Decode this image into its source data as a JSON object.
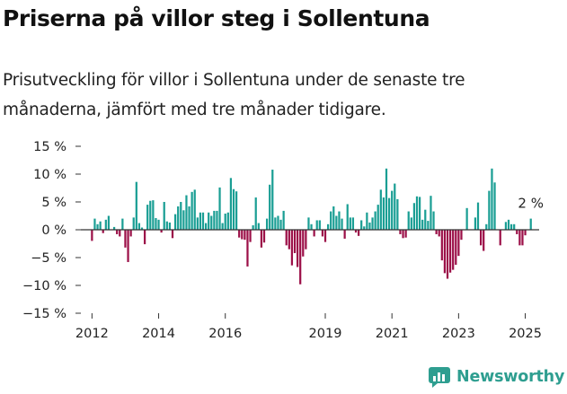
{
  "title": "Priserna på villor steg i Sollentuna",
  "subtitle": "Prisutveckling för villor i Sollentuna under de senaste tre månaderna, jämfört med tre månader tidigare.",
  "brand": {
    "name": "Newsworthy",
    "icon": "newsworthy-logo-icon"
  },
  "colors": {
    "positive": "#1a9e94",
    "negative": "#9c1048",
    "axis": "#333333",
    "text": "#222222"
  },
  "chart_data": {
    "type": "bar",
    "x_start": "2011-09",
    "x_end": "2025-06",
    "ylim": [
      -15,
      15
    ],
    "y_ticks": [
      15,
      10,
      5,
      0,
      -5,
      -10,
      -15
    ],
    "y_tick_labels": [
      "15 %",
      "10 %",
      "5 %",
      "0 %",
      "−5 %",
      "−10 %",
      "−15 %"
    ],
    "x_ticks": [
      "2012",
      "2014",
      "2016",
      "2019",
      "2021",
      "2023",
      "2025"
    ],
    "x_tick_dates": [
      "2012-01",
      "2014-01",
      "2016-01",
      "2019-01",
      "2021-01",
      "2023-01",
      "2025-01"
    ],
    "annotation": {
      "text": "2 %",
      "date": "2025-03"
    },
    "grid": false,
    "legend": "none",
    "series": [
      {
        "values": [
          {
            "date": "2012-01",
            "value": -2.0
          },
          {
            "date": "2012-02",
            "value": 2.0
          },
          {
            "date": "2012-03",
            "value": 1.0
          },
          {
            "date": "2012-04",
            "value": 1.5
          },
          {
            "date": "2012-05",
            "value": -0.6
          },
          {
            "date": "2012-06",
            "value": 1.8
          },
          {
            "date": "2012-07",
            "value": 2.5
          },
          {
            "date": "2012-09",
            "value": 0.5
          },
          {
            "date": "2012-10",
            "value": -0.8
          },
          {
            "date": "2012-11",
            "value": -1.2
          },
          {
            "date": "2012-12",
            "value": 2.0
          },
          {
            "date": "2013-01",
            "value": -3.2
          },
          {
            "date": "2013-02",
            "value": -5.8
          },
          {
            "date": "2013-03",
            "value": -1.2
          },
          {
            "date": "2013-04",
            "value": 2.2
          },
          {
            "date": "2013-05",
            "value": 8.6
          },
          {
            "date": "2013-06",
            "value": 1.2
          },
          {
            "date": "2013-07",
            "value": 0.4
          },
          {
            "date": "2013-08",
            "value": -2.6
          },
          {
            "date": "2013-09",
            "value": 4.5
          },
          {
            "date": "2013-10",
            "value": 5.2
          },
          {
            "date": "2013-11",
            "value": 5.3
          },
          {
            "date": "2013-12",
            "value": 2.1
          },
          {
            "date": "2014-01",
            "value": 1.8
          },
          {
            "date": "2014-02",
            "value": -0.5
          },
          {
            "date": "2014-03",
            "value": 5.0
          },
          {
            "date": "2014-04",
            "value": 1.5
          },
          {
            "date": "2014-05",
            "value": 1.3
          },
          {
            "date": "2014-06",
            "value": -1.5
          },
          {
            "date": "2014-07",
            "value": 2.8
          },
          {
            "date": "2014-08",
            "value": 4.2
          },
          {
            "date": "2014-09",
            "value": 5.0
          },
          {
            "date": "2014-10",
            "value": 3.5
          },
          {
            "date": "2014-11",
            "value": 6.2
          },
          {
            "date": "2014-12",
            "value": 4.2
          },
          {
            "date": "2015-01",
            "value": 6.8
          },
          {
            "date": "2015-02",
            "value": 7.2
          },
          {
            "date": "2015-03",
            "value": 2.2
          },
          {
            "date": "2015-04",
            "value": 3.1
          },
          {
            "date": "2015-05",
            "value": 3.1
          },
          {
            "date": "2015-06",
            "value": 1.2
          },
          {
            "date": "2015-07",
            "value": 3.1
          },
          {
            "date": "2015-08",
            "value": 2.5
          },
          {
            "date": "2015-09",
            "value": 3.4
          },
          {
            "date": "2015-10",
            "value": 3.4
          },
          {
            "date": "2015-11",
            "value": 7.6
          },
          {
            "date": "2015-12",
            "value": 1.2
          },
          {
            "date": "2016-01",
            "value": 2.9
          },
          {
            "date": "2016-02",
            "value": 3.1
          },
          {
            "date": "2016-03",
            "value": 9.3
          },
          {
            "date": "2016-04",
            "value": 7.3
          },
          {
            "date": "2016-05",
            "value": 6.9
          },
          {
            "date": "2016-06",
            "value": -1.4
          },
          {
            "date": "2016-07",
            "value": -1.7
          },
          {
            "date": "2016-08",
            "value": -1.8
          },
          {
            "date": "2016-09",
            "value": -6.6
          },
          {
            "date": "2016-10",
            "value": -2.2
          },
          {
            "date": "2016-11",
            "value": 0.8
          },
          {
            "date": "2016-12",
            "value": 5.8
          },
          {
            "date": "2017-01",
            "value": 1.2
          },
          {
            "date": "2017-02",
            "value": -3.2
          },
          {
            "date": "2017-03",
            "value": -2.3
          },
          {
            "date": "2017-04",
            "value": 2.0
          },
          {
            "date": "2017-05",
            "value": 8.1
          },
          {
            "date": "2017-06",
            "value": 10.8
          },
          {
            "date": "2017-07",
            "value": 2.2
          },
          {
            "date": "2017-08",
            "value": 2.5
          },
          {
            "date": "2017-09",
            "value": 1.8
          },
          {
            "date": "2017-10",
            "value": 3.4
          },
          {
            "date": "2017-11",
            "value": -2.8
          },
          {
            "date": "2017-12",
            "value": -3.5
          },
          {
            "date": "2018-01",
            "value": -6.4
          },
          {
            "date": "2018-02",
            "value": -4.2
          },
          {
            "date": "2018-03",
            "value": -6.7
          },
          {
            "date": "2018-04",
            "value": -9.8
          },
          {
            "date": "2018-05",
            "value": -4.8
          },
          {
            "date": "2018-06",
            "value": -3.5
          },
          {
            "date": "2018-07",
            "value": 2.2
          },
          {
            "date": "2018-08",
            "value": 1.0
          },
          {
            "date": "2018-09",
            "value": -1.2
          },
          {
            "date": "2018-10",
            "value": 1.7
          },
          {
            "date": "2018-11",
            "value": 1.7
          },
          {
            "date": "2018-12",
            "value": -1.2
          },
          {
            "date": "2019-01",
            "value": -2.2
          },
          {
            "date": "2019-02",
            "value": 1.0
          },
          {
            "date": "2019-03",
            "value": 3.3
          },
          {
            "date": "2019-04",
            "value": 4.2
          },
          {
            "date": "2019-05",
            "value": 2.5
          },
          {
            "date": "2019-06",
            "value": 3.3
          },
          {
            "date": "2019-07",
            "value": 2.0
          },
          {
            "date": "2019-08",
            "value": -1.6
          },
          {
            "date": "2019-09",
            "value": 4.6
          },
          {
            "date": "2019-10",
            "value": 2.2
          },
          {
            "date": "2019-11",
            "value": 2.2
          },
          {
            "date": "2019-12",
            "value": -0.5
          },
          {
            "date": "2020-01",
            "value": -1.1
          },
          {
            "date": "2020-02",
            "value": 1.7
          },
          {
            "date": "2020-03",
            "value": 0.6
          },
          {
            "date": "2020-04",
            "value": 3.1
          },
          {
            "date": "2020-05",
            "value": 1.3
          },
          {
            "date": "2020-06",
            "value": 2.2
          },
          {
            "date": "2020-07",
            "value": 3.3
          },
          {
            "date": "2020-08",
            "value": 4.5
          },
          {
            "date": "2020-09",
            "value": 7.2
          },
          {
            "date": "2020-10",
            "value": 5.8
          },
          {
            "date": "2020-11",
            "value": 11.0
          },
          {
            "date": "2020-12",
            "value": 5.7
          },
          {
            "date": "2021-01",
            "value": 7.0
          },
          {
            "date": "2021-02",
            "value": 8.3
          },
          {
            "date": "2021-03",
            "value": 5.5
          },
          {
            "date": "2021-04",
            "value": -0.8
          },
          {
            "date": "2021-05",
            "value": -1.5
          },
          {
            "date": "2021-06",
            "value": -1.4
          },
          {
            "date": "2021-07",
            "value": 3.3
          },
          {
            "date": "2021-08",
            "value": 2.2
          },
          {
            "date": "2021-09",
            "value": 4.8
          },
          {
            "date": "2021-10",
            "value": 6.0
          },
          {
            "date": "2021-11",
            "value": 5.9
          },
          {
            "date": "2021-12",
            "value": 1.8
          },
          {
            "date": "2022-01",
            "value": 3.6
          },
          {
            "date": "2022-02",
            "value": 1.6
          },
          {
            "date": "2022-03",
            "value": 6.1
          },
          {
            "date": "2022-04",
            "value": 3.3
          },
          {
            "date": "2022-05",
            "value": -0.8
          },
          {
            "date": "2022-06",
            "value": -1.2
          },
          {
            "date": "2022-07",
            "value": -5.5
          },
          {
            "date": "2022-08",
            "value": -7.8
          },
          {
            "date": "2022-09",
            "value": -8.8
          },
          {
            "date": "2022-10",
            "value": -7.7
          },
          {
            "date": "2022-11",
            "value": -7.2
          },
          {
            "date": "2022-12",
            "value": -6.3
          },
          {
            "date": "2023-01",
            "value": -4.7
          },
          {
            "date": "2023-02",
            "value": -1.8
          },
          {
            "date": "2023-04",
            "value": 3.9
          },
          {
            "date": "2023-07",
            "value": 2.2
          },
          {
            "date": "2023-08",
            "value": 4.9
          },
          {
            "date": "2023-09",
            "value": -2.8
          },
          {
            "date": "2023-10",
            "value": -3.8
          },
          {
            "date": "2023-11",
            "value": 1.0
          },
          {
            "date": "2023-12",
            "value": 7.0
          },
          {
            "date": "2024-01",
            "value": 11.0
          },
          {
            "date": "2024-02",
            "value": 8.5
          },
          {
            "date": "2024-04",
            "value": -2.8
          },
          {
            "date": "2024-06",
            "value": 1.4
          },
          {
            "date": "2024-07",
            "value": 1.8
          },
          {
            "date": "2024-08",
            "value": 1.0
          },
          {
            "date": "2024-09",
            "value": 1.0
          },
          {
            "date": "2024-10",
            "value": -0.8
          },
          {
            "date": "2024-11",
            "value": -2.8
          },
          {
            "date": "2024-12",
            "value": -2.8
          },
          {
            "date": "2025-01",
            "value": -1.0
          },
          {
            "date": "2025-03",
            "value": 2.0
          }
        ]
      }
    ]
  }
}
